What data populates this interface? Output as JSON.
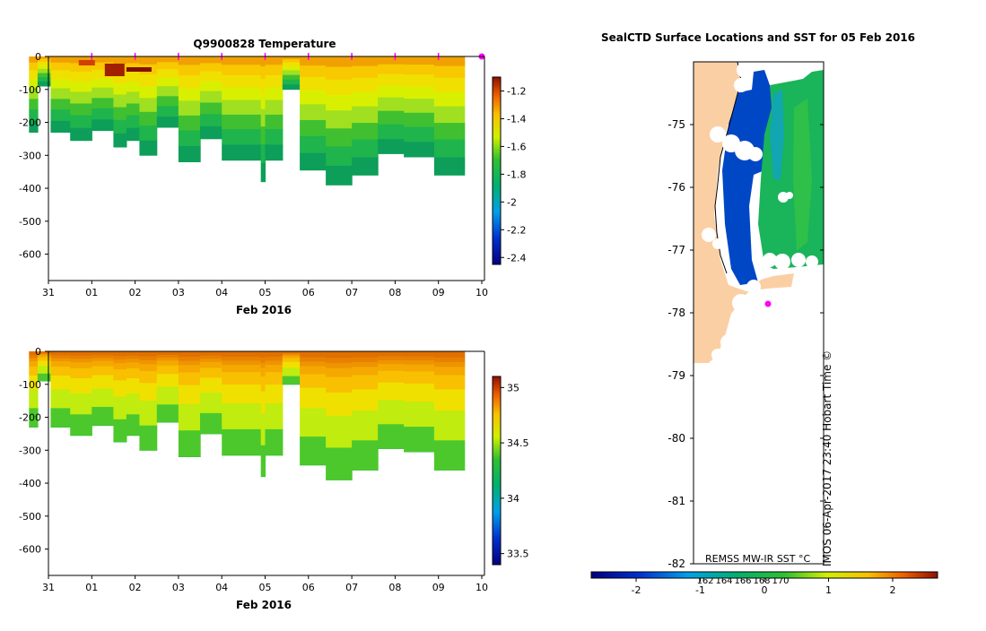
{
  "colors": {
    "background": "#ffffff",
    "land": "#fbcfa4",
    "cloud": "#ffffff",
    "marker": "#ff00ff",
    "axis": "#000000"
  },
  "chart_data": [
    {
      "type": "heatmap",
      "id": "temperature",
      "title": "Q9900828  Temperature",
      "xlabel": "Feb 2016",
      "ylabel": "",
      "xticks": [
        "31",
        "01",
        "02",
        "03",
        "04",
        "05",
        "06",
        "07",
        "08",
        "09",
        "10"
      ],
      "yticks": [
        0,
        -100,
        -200,
        -300,
        -400,
        -500,
        -600
      ],
      "ylim": [
        -680,
        0
      ],
      "colorbar": {
        "ticks": [
          -1.2,
          -1.4,
          -1.6,
          -1.8,
          -2,
          -2.2,
          -2.4
        ],
        "range": [
          -2.45,
          -1.1
        ]
      },
      "profile_days": [
        -0.45,
        -0.25,
        0.05,
        0.5,
        1.0,
        1.5,
        1.8,
        2.1,
        2.5,
        3.0,
        3.5,
        4.0,
        4.9,
        5.0,
        5.4,
        5.8,
        6.4,
        7.0,
        7.6,
        8.2,
        8.9,
        9.6
      ],
      "profile_depths": [
        230,
        90,
        230,
        255,
        225,
        275,
        255,
        300,
        215,
        320,
        250,
        315,
        380,
        315,
        100,
        345,
        390,
        360,
        295,
        305,
        360,
        355
      ],
      "gap_days": [
        4.25,
        4.85
      ],
      "surface_markers_days": [
        1.0,
        2.0,
        3.0,
        4.0,
        5.0,
        6.0,
        7.0,
        8.0,
        9.0,
        10.0
      ]
    },
    {
      "type": "heatmap",
      "id": "salinity",
      "title": "",
      "xlabel": "Feb 2016",
      "ylabel": "",
      "xticks": [
        "31",
        "01",
        "02",
        "03",
        "04",
        "05",
        "06",
        "07",
        "08",
        "09",
        "10"
      ],
      "yticks": [
        0,
        -100,
        -200,
        -300,
        -400,
        -500,
        -600
      ],
      "ylim": [
        -680,
        0
      ],
      "colorbar": {
        "ticks": [
          35,
          34.5,
          34,
          33.5
        ],
        "range": [
          33.4,
          35.1
        ]
      }
    },
    {
      "type": "heatmap",
      "id": "sst_map",
      "title": "SealCTD Surface Locations and SST for 05 Feb 2016",
      "yticks": [
        "-75",
        "-76",
        "-77",
        "-78",
        "-79",
        "-80",
        "-81",
        "-82"
      ],
      "xticks": [
        "162",
        "164",
        "166",
        "168",
        "170"
      ],
      "colorbar": {
        "ticks": [
          "-2",
          "-1",
          "0",
          "1",
          "2"
        ],
        "range": [
          -2.7,
          2.7
        ]
      },
      "source_label": "REMSS MW-IR SST °C",
      "credit_label": "IMOS 06-Apr-2017 23:40 Hobart Time ©"
    }
  ]
}
